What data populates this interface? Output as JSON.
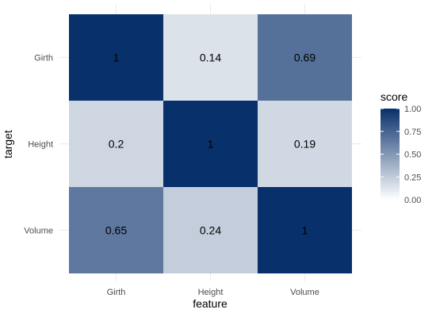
{
  "chart_data": {
    "type": "heatmap",
    "x_categories": [
      "Girth",
      "Height",
      "Volume"
    ],
    "y_categories": [
      "Girth",
      "Height",
      "Volume"
    ],
    "values": [
      [
        1,
        0.14,
        0.69
      ],
      [
        0.2,
        1,
        0.19
      ],
      [
        0.65,
        0.24,
        1
      ]
    ],
    "value_labels": [
      [
        "1",
        "0.14",
        "0.69"
      ],
      [
        "0.2",
        "1",
        "0.19"
      ],
      [
        "0.65",
        "0.24",
        "1"
      ]
    ],
    "xlabel": "feature",
    "ylabel": "target",
    "legend": {
      "title": "score",
      "ticks": [
        "1.00",
        "0.75",
        "0.50",
        "0.25",
        "0.00"
      ],
      "tick_values": [
        1.0,
        0.75,
        0.5,
        0.25,
        0.0
      ],
      "placement": "right"
    },
    "color_low": "#ffffff",
    "color_high": "#08306b",
    "grid": true
  }
}
